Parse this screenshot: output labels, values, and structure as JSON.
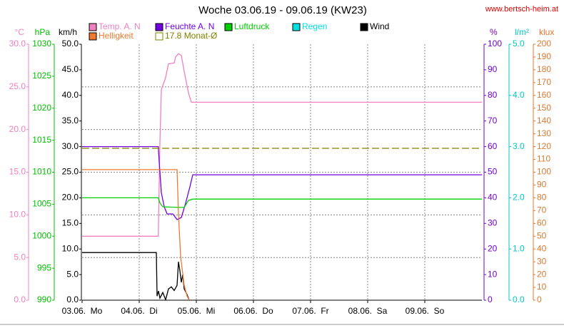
{
  "chart_data": {
    "type": "line",
    "title": "Woche 03.06.19 - 09.06.19 (KW23)",
    "source": "www.bertsch-heim.at",
    "xlim": [
      0,
      168
    ],
    "xticks": [
      {
        "value": 0,
        "label": "03.06.  Mo"
      },
      {
        "value": 24,
        "label": "04.06.  Di"
      },
      {
        "value": 48,
        "label": "05.06.  Mi"
      },
      {
        "value": 72,
        "label": "06.06.  Do"
      },
      {
        "value": 96,
        "label": "07.06.  Fr"
      },
      {
        "value": 120,
        "label": "08.06.  Sa"
      },
      {
        "value": 144,
        "label": "09.06.  So"
      }
    ],
    "grid": true,
    "axes": [
      {
        "label": "°C",
        "color": "#f080c0",
        "side": "left",
        "ylim": [
          0,
          30
        ],
        "yticks": [
          {
            "value": 0,
            "label": "0.0"
          },
          {
            "value": 5,
            "label": "5.0"
          },
          {
            "value": 10,
            "label": "10.0"
          },
          {
            "value": 15,
            "label": "15.0"
          },
          {
            "value": 20,
            "label": "20.0"
          },
          {
            "value": 25,
            "label": "25.0"
          },
          {
            "value": 30,
            "label": "30.0"
          }
        ]
      },
      {
        "label": "hPa",
        "color": "#00c000",
        "side": "left",
        "ylim": [
          990,
          1030
        ],
        "yticks": [
          990,
          995,
          1000,
          1005,
          1010,
          1015,
          1020,
          1025,
          1030
        ]
      },
      {
        "label": "km/h",
        "color": "#000000",
        "side": "left",
        "ylim": [
          0,
          50
        ],
        "yticks": [
          {
            "value": 0,
            "label": "0.0"
          },
          {
            "value": 5,
            "label": "5.0"
          },
          {
            "value": 10,
            "label": "10.0"
          },
          {
            "value": 15,
            "label": "15.0"
          },
          {
            "value": 20,
            "label": "20.0"
          },
          {
            "value": 25,
            "label": "25.0"
          },
          {
            "value": 30,
            "label": "30.0"
          },
          {
            "value": 35,
            "label": "35.0"
          },
          {
            "value": 40,
            "label": "40.0"
          },
          {
            "value": 45,
            "label": "45.0"
          },
          {
            "value": 50,
            "label": "50.0"
          }
        ]
      },
      {
        "label": "%",
        "color": "#7000d0",
        "side": "right",
        "ylim": [
          0,
          100
        ],
        "yticks": [
          0,
          10,
          20,
          30,
          40,
          50,
          60,
          70,
          80,
          90,
          100
        ]
      },
      {
        "label": "l/m²",
        "color": "#00c8c8",
        "side": "right",
        "ylim": [
          0,
          5
        ],
        "yticks": [
          {
            "value": 0,
            "label": "0.0"
          },
          {
            "value": 1,
            "label": "1.0"
          },
          {
            "value": 2,
            "label": "2.0"
          },
          {
            "value": 3,
            "label": "3.0"
          },
          {
            "value": 4,
            "label": "4.0"
          },
          {
            "value": 5,
            "label": "5.0"
          }
        ]
      },
      {
        "label": "klux",
        "color": "#e07830",
        "side": "right",
        "ylim": [
          0,
          200
        ],
        "yticks": [
          0,
          10,
          20,
          30,
          40,
          50,
          60,
          70,
          80,
          90,
          100,
          110,
          120,
          130,
          140,
          150,
          160,
          170,
          180,
          190,
          200
        ]
      }
    ],
    "series": [
      {
        "name": "Temp. A. N",
        "color": "#f080c0",
        "axis": 0,
        "x": [
          0,
          32,
          32.7,
          33.3,
          35,
          36.3,
          38.7,
          39.3,
          40.5,
          41.7,
          42.9,
          44.7,
          45.9,
          168
        ],
        "values": [
          7.5,
          7.5,
          18.5,
          24.7,
          26,
          27.7,
          27.8,
          28.5,
          28.9,
          28.7,
          26.8,
          24.3,
          23.2,
          23.2
        ]
      },
      {
        "name": "Feuchte A. N",
        "color": "#7000e0",
        "axis": 3,
        "x": [
          0,
          32,
          32.4,
          33.3,
          34.5,
          35.7,
          38.1,
          39.9,
          41.7,
          43.5,
          45.3,
          46.5,
          168
        ],
        "values": [
          60,
          60,
          54,
          42,
          36.5,
          33.7,
          33.7,
          31.5,
          32.3,
          37.9,
          44.3,
          49,
          49
        ]
      },
      {
        "name": "Luftdruck",
        "color": "#00d000",
        "axis": 1,
        "x": [
          0,
          32,
          32.7,
          33.9,
          40.5,
          42.9,
          44.7,
          46.5,
          168
        ],
        "values": [
          1006,
          1006,
          1005.2,
          1004.6,
          1004.5,
          1004.5,
          1005.6,
          1005.8,
          1005.8
        ]
      },
      {
        "name": "Regen",
        "color": "#00e0e0",
        "axis": 4,
        "x": [],
        "values": []
      },
      {
        "name": "Wind",
        "color": "#000000",
        "axis": 2,
        "x": [
          0,
          31.2,
          31.5,
          32.1,
          32.7,
          33.9,
          35.1,
          36.3,
          37.5,
          38.7,
          39.9,
          40.5,
          41.1,
          41.7,
          42.3,
          42.9,
          44.1,
          45
        ],
        "values": [
          9.3,
          9.3,
          0.8,
          1.8,
          0.4,
          1.5,
          0.1,
          2.2,
          2.6,
          1.9,
          2.9,
          7.5,
          5.7,
          3.5,
          5,
          2.2,
          1.1,
          0
        ]
      },
      {
        "name": "Helligkeit",
        "color": "#f07830",
        "axis": 5,
        "x": [
          0,
          39.9,
          40.5,
          41.4,
          42.9,
          44.1,
          45
        ],
        "values": [
          102,
          102,
          67,
          34,
          11.7,
          3.3,
          0
        ]
      },
      {
        "name": "17.8 Monat-Ø",
        "color": "#808000",
        "axis": 0,
        "dashed": true,
        "x": [
          0,
          168
        ],
        "values": [
          17.8,
          17.8
        ]
      }
    ]
  }
}
